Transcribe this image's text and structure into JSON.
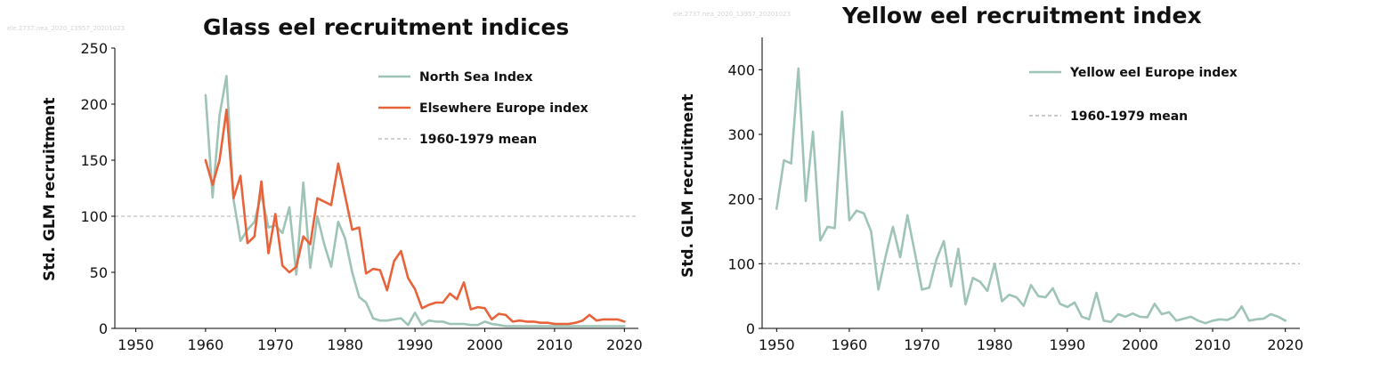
{
  "chart_data": [
    {
      "type": "line",
      "title": "Glass eel recruitment indices",
      "watermark": "ele.2737.nea_2020_13957_20201023",
      "ylabel": "Std. GLM recruitment",
      "xlabel": "",
      "xlim": [
        1947,
        2022
      ],
      "ylim": [
        0,
        250
      ],
      "xticks": [
        1950,
        1960,
        1970,
        1980,
        1990,
        2000,
        2010,
        2020
      ],
      "yticks": [
        0,
        50,
        100,
        150,
        200,
        250
      ],
      "grid": false,
      "legend_position": "top-right",
      "reference_line": {
        "label": "1960-1979 mean",
        "value": 100,
        "color": "#c0c0c0"
      },
      "series": [
        {
          "name": "North Sea Index",
          "color": "#9ec4b5",
          "x": [
            1960,
            1961,
            1962,
            1963,
            1964,
            1965,
            1966,
            1967,
            1968,
            1969,
            1970,
            1971,
            1972,
            1973,
            1974,
            1975,
            1976,
            1977,
            1978,
            1979,
            1980,
            1981,
            1982,
            1983,
            1984,
            1985,
            1986,
            1987,
            1988,
            1989,
            1990,
            1991,
            1992,
            1993,
            1994,
            1995,
            1996,
            1997,
            1998,
            1999,
            2000,
            2001,
            2002,
            2003,
            2004,
            2005,
            2006,
            2007,
            2008,
            2009,
            2010,
            2011,
            2012,
            2013,
            2014,
            2015,
            2016,
            2017,
            2018,
            2019,
            2020
          ],
          "y": [
            208,
            117,
            190,
            225,
            115,
            78,
            88,
            95,
            120,
            90,
            92,
            85,
            108,
            48,
            130,
            54,
            100,
            75,
            55,
            95,
            80,
            50,
            28,
            23,
            9,
            7,
            7,
            8,
            9,
            3,
            14,
            3,
            7,
            6,
            6,
            4,
            4,
            4,
            3,
            3,
            6,
            4,
            3,
            2,
            2,
            2,
            2,
            2,
            2,
            2,
            2,
            2,
            2,
            2,
            2,
            2,
            2,
            2,
            2,
            2,
            2
          ]
        },
        {
          "name": "Elsewhere Europe index",
          "color": "#e8633a",
          "x": [
            1960,
            1961,
            1962,
            1963,
            1964,
            1965,
            1966,
            1967,
            1968,
            1969,
            1970,
            1971,
            1972,
            1973,
            1974,
            1975,
            1976,
            1977,
            1978,
            1979,
            1980,
            1981,
            1982,
            1983,
            1984,
            1985,
            1986,
            1987,
            1988,
            1989,
            1990,
            1991,
            1992,
            1993,
            1994,
            1995,
            1996,
            1997,
            1998,
            1999,
            2000,
            2001,
            2002,
            2003,
            2004,
            2005,
            2006,
            2007,
            2008,
            2009,
            2010,
            2011,
            2012,
            2013,
            2014,
            2015,
            2016,
            2017,
            2018,
            2019,
            2020
          ],
          "y": [
            150,
            128,
            150,
            195,
            116,
            136,
            76,
            82,
            131,
            67,
            102,
            56,
            50,
            55,
            82,
            75,
            116,
            113,
            110,
            147,
            118,
            88,
            90,
            49,
            53,
            52,
            34,
            60,
            69,
            45,
            35,
            18,
            21,
            23,
            23,
            31,
            26,
            41,
            17,
            19,
            18,
            8,
            13,
            12,
            6,
            7,
            6,
            6,
            5,
            5,
            4,
            4,
            4,
            5,
            7,
            12,
            7,
            8,
            8,
            8,
            6
          ]
        }
      ]
    },
    {
      "type": "line",
      "title": "Yellow eel recruitment index",
      "watermark": "ele.2737.nea_2020_13957_20201023",
      "ylabel": "Std. GLM recruitment",
      "xlabel": "",
      "xlim": [
        1948,
        2022
      ],
      "ylim": [
        0,
        450
      ],
      "xticks": [
        1950,
        1960,
        1970,
        1980,
        1990,
        2000,
        2010,
        2020
      ],
      "yticks": [
        0,
        100,
        200,
        300,
        400
      ],
      "grid": false,
      "legend_position": "top-right",
      "reference_line": {
        "label": "1960-1979 mean",
        "value": 100,
        "color": "#b8b8b8"
      },
      "series": [
        {
          "name": "Yellow eel Europe index",
          "color": "#9ec4b5",
          "x": [
            1950,
            1951,
            1952,
            1953,
            1954,
            1955,
            1956,
            1957,
            1958,
            1959,
            1960,
            1961,
            1962,
            1963,
            1964,
            1965,
            1966,
            1967,
            1968,
            1969,
            1970,
            1971,
            1972,
            1973,
            1974,
            1975,
            1976,
            1977,
            1978,
            1979,
            1980,
            1981,
            1982,
            1983,
            1984,
            1985,
            1986,
            1987,
            1988,
            1989,
            1990,
            1991,
            1992,
            1993,
            1994,
            1995,
            1996,
            1997,
            1998,
            1999,
            2000,
            2001,
            2002,
            2003,
            2004,
            2005,
            2006,
            2007,
            2008,
            2009,
            2010,
            2011,
            2012,
            2013,
            2014,
            2015,
            2016,
            2017,
            2018,
            2019,
            2020
          ],
          "y": [
            185,
            260,
            255,
            402,
            197,
            304,
            136,
            157,
            155,
            335,
            167,
            182,
            178,
            150,
            60,
            112,
            157,
            110,
            175,
            118,
            60,
            63,
            107,
            135,
            65,
            123,
            37,
            78,
            72,
            58,
            100,
            42,
            52,
            48,
            35,
            67,
            50,
            48,
            62,
            38,
            33,
            40,
            18,
            14,
            55,
            12,
            10,
            22,
            18,
            23,
            18,
            17,
            38,
            22,
            25,
            12,
            15,
            18,
            12,
            8,
            12,
            14,
            13,
            18,
            34,
            12,
            14,
            15,
            22,
            18,
            12
          ]
        }
      ]
    }
  ]
}
